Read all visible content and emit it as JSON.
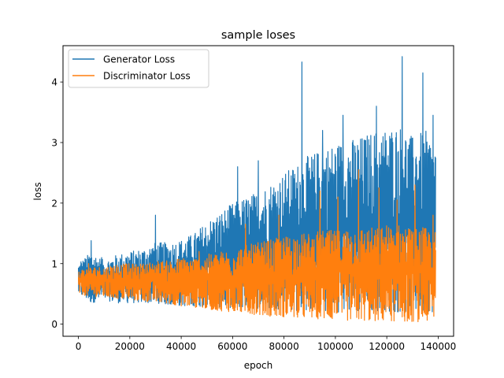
{
  "chart_data": {
    "type": "line",
    "title": "sample loses",
    "xlabel": "epoch",
    "ylabel": "loss",
    "xlim": [
      -6000,
      146000
    ],
    "ylim": [
      -0.2,
      4.6
    ],
    "x_ticks": [
      0,
      20000,
      40000,
      60000,
      80000,
      100000,
      120000,
      140000
    ],
    "x_tick_labels": [
      "0",
      "20000",
      "40000",
      "60000",
      "80000",
      "100000",
      "120000",
      "140000"
    ],
    "y_ticks": [
      0,
      1,
      2,
      3,
      4
    ],
    "y_tick_labels": [
      "0",
      "1",
      "2",
      "3",
      "4"
    ],
    "grid": false,
    "legend_position": "top-left",
    "series": [
      {
        "name": "Generator Loss",
        "color": "#1f77b4",
        "x": [
          0,
          5000,
          10000,
          15000,
          20000,
          25000,
          30000,
          35000,
          40000,
          45000,
          50000,
          55000,
          60000,
          65000,
          70000,
          75000,
          80000,
          85000,
          90000,
          95000,
          100000,
          105000,
          110000,
          115000,
          120000,
          125000,
          130000,
          135000,
          139000
        ],
        "upper": [
          1.0,
          1.2,
          1.05,
          1.15,
          1.2,
          1.25,
          1.35,
          1.35,
          1.4,
          1.5,
          1.7,
          1.85,
          2.0,
          2.1,
          2.2,
          2.35,
          2.5,
          2.65,
          2.8,
          2.9,
          3.0,
          3.05,
          3.1,
          3.2,
          3.25,
          3.3,
          3.1,
          3.2,
          3.0
        ],
        "lower": [
          0.5,
          0.35,
          0.4,
          0.35,
          0.35,
          0.35,
          0.35,
          0.32,
          0.3,
          0.3,
          0.28,
          0.28,
          0.27,
          0.27,
          0.25,
          0.25,
          0.25,
          0.22,
          0.22,
          0.2,
          0.2,
          0.2,
          0.2,
          0.2,
          0.2,
          0.2,
          0.18,
          0.2,
          0.2
        ],
        "spikes": [
          [
            1000,
            1.03
          ],
          [
            5000,
            1.38
          ],
          [
            9000,
            1.1
          ],
          [
            30000,
            1.8
          ],
          [
            62000,
            2.6
          ],
          [
            70000,
            2.7
          ],
          [
            87000,
            4.33
          ],
          [
            95000,
            3.2
          ],
          [
            103000,
            3.45
          ],
          [
            116000,
            3.6
          ],
          [
            126000,
            4.42
          ],
          [
            134000,
            4.15
          ],
          [
            138000,
            3.45
          ]
        ]
      },
      {
        "name": "Discriminator Loss",
        "color": "#ff7f0e",
        "x": [
          0,
          5000,
          10000,
          15000,
          20000,
          25000,
          30000,
          35000,
          40000,
          45000,
          50000,
          55000,
          60000,
          65000,
          70000,
          75000,
          80000,
          85000,
          90000,
          95000,
          100000,
          105000,
          110000,
          115000,
          120000,
          125000,
          130000,
          135000,
          139000
        ],
        "upper": [
          0.9,
          0.95,
          0.95,
          1.0,
          1.0,
          1.0,
          1.05,
          1.05,
          1.1,
          1.1,
          1.15,
          1.2,
          1.25,
          1.3,
          1.35,
          1.4,
          1.45,
          1.5,
          1.5,
          1.55,
          1.55,
          1.6,
          1.6,
          1.6,
          1.65,
          1.65,
          1.6,
          1.6,
          1.55
        ],
        "lower": [
          0.5,
          0.45,
          0.45,
          0.42,
          0.4,
          0.38,
          0.36,
          0.34,
          0.3,
          0.28,
          0.25,
          0.22,
          0.2,
          0.18,
          0.15,
          0.13,
          0.12,
          0.1,
          0.1,
          0.08,
          0.07,
          0.06,
          0.06,
          0.05,
          0.05,
          0.05,
          0.04,
          0.04,
          0.04
        ],
        "spikes": [
          [
            4000,
            1.0
          ],
          [
            47000,
            1.2
          ],
          [
            65000,
            1.65
          ],
          [
            78000,
            1.8
          ],
          [
            94000,
            2.2
          ],
          [
            101000,
            2.1
          ],
          [
            109000,
            2.55
          ],
          [
            117000,
            2.25
          ],
          [
            124000,
            2.05
          ],
          [
            131000,
            2.3
          ],
          [
            138000,
            1.8
          ]
        ]
      }
    ]
  }
}
